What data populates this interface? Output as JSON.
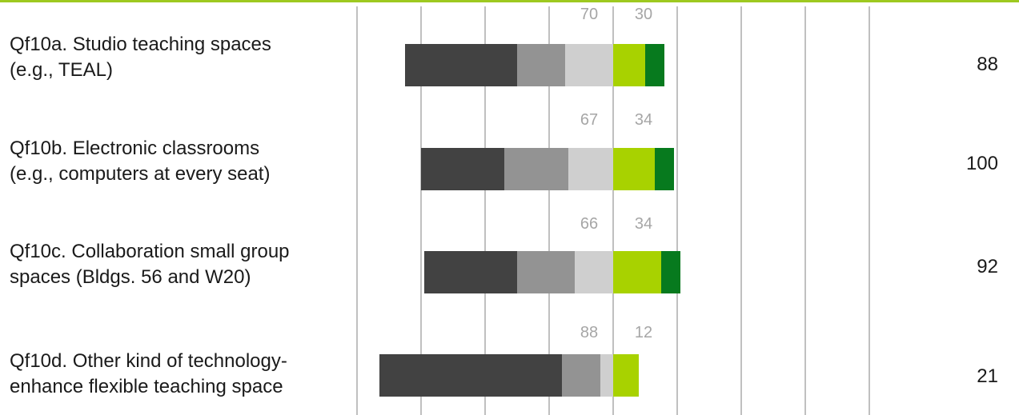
{
  "chart_data": {
    "type": "bar",
    "subtype": "diverging-stacked",
    "categories": [
      [
        "Qf10a. Studio teaching spaces",
        "(e.g., TEAL)"
      ],
      [
        "Qf10b. Electronic classrooms",
        "(e.g., computers at every seat)"
      ],
      [
        "Qf10c. Collaboration small group",
        "spaces (Bldgs. 56 and W20)"
      ],
      [
        "Qf10d. Other kind of technology-",
        "enhance flexible teaching space"
      ]
    ],
    "segment_colors": [
      "#424242",
      "#939393",
      "#cfcfcf",
      "#a8d200",
      "#077a1e"
    ],
    "rows": [
      {
        "segments": [
          35,
          15,
          15,
          10,
          6
        ],
        "left_total": "70",
        "right_total": "30",
        "n": "88"
      },
      {
        "segments": [
          26,
          20,
          14,
          13,
          6
        ],
        "left_total": "67",
        "right_total": "34",
        "n": "100"
      },
      {
        "segments": [
          29,
          18,
          12,
          15,
          6
        ],
        "left_total": "66",
        "right_total": "34",
        "n": "92"
      },
      {
        "segments": [
          57,
          12,
          4,
          8,
          0
        ],
        "left_total": "88",
        "right_total": "12",
        "n": "21"
      }
    ],
    "gridlines": 9,
    "grid": true,
    "legend": "none"
  }
}
